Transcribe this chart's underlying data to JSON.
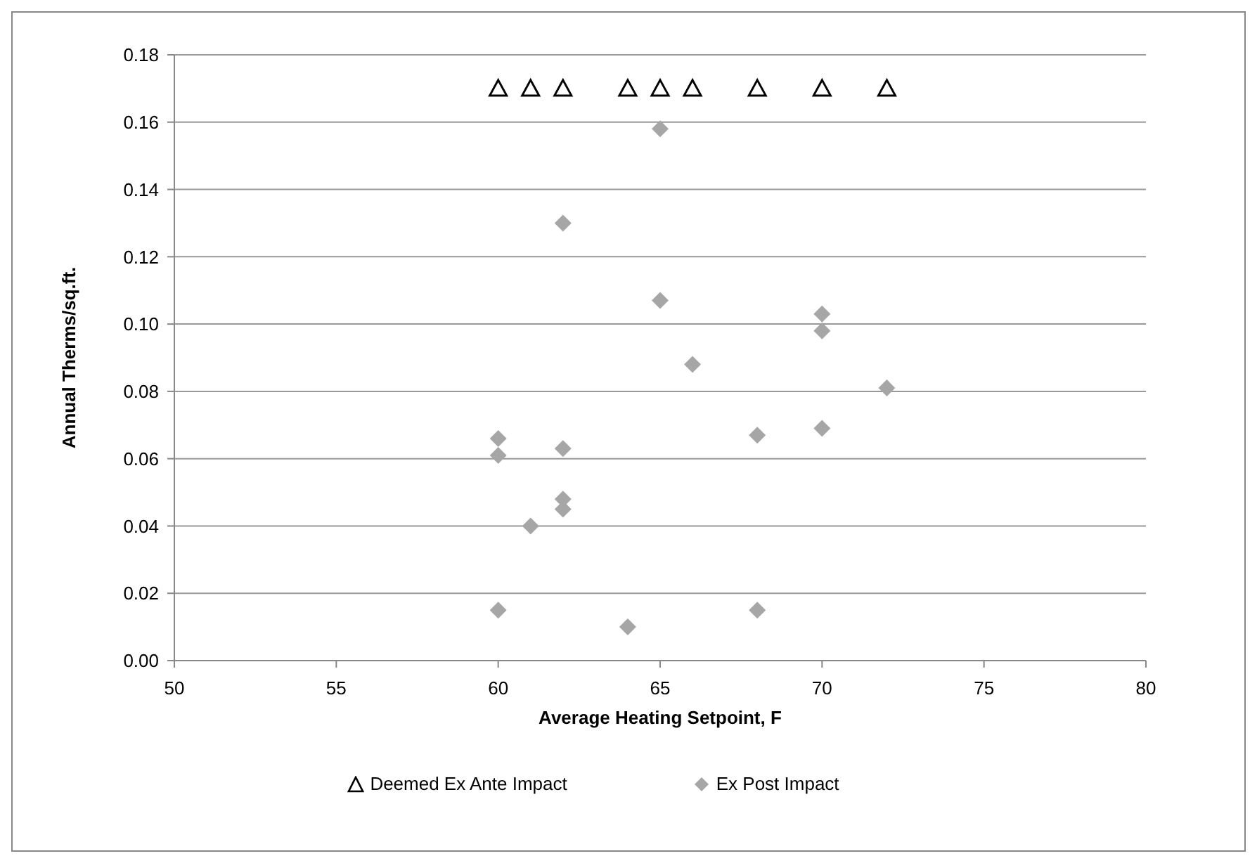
{
  "chart_data": {
    "type": "scatter",
    "xlabel": "Average Heating  Setpoint, F",
    "ylabel": "Annual Therms/sq.ft.",
    "xlim": [
      50,
      80
    ],
    "xticks": [
      50,
      55,
      60,
      65,
      70,
      75,
      80
    ],
    "ylim": [
      0,
      0.18
    ],
    "yticks": [
      {
        "value": 0,
        "label": "0.00"
      },
      {
        "value": 0.02,
        "label": "0.02"
      },
      {
        "value": 0.04,
        "label": "0.04"
      },
      {
        "value": 0.06,
        "label": "0.06"
      },
      {
        "value": 0.08,
        "label": "0.08"
      },
      {
        "value": 0.1,
        "label": "0.10"
      },
      {
        "value": 0.12,
        "label": "0.12"
      },
      {
        "value": 0.14,
        "label": "0.14"
      },
      {
        "value": 0.16,
        "label": "0.16"
      },
      {
        "value": 0.18,
        "label": "0.18"
      }
    ],
    "grid": "y",
    "legend": "bottom",
    "series": [
      {
        "name": "Deemed Ex Ante Impact",
        "color": "#000000",
        "marker": "triangle",
        "x": [
          60,
          61,
          62,
          64,
          65,
          66,
          68,
          70,
          72
        ],
        "values": [
          0.17,
          0.17,
          0.17,
          0.17,
          0.17,
          0.17,
          0.17,
          0.17,
          0.17
        ]
      },
      {
        "name": "Ex Post Impact",
        "color": "#a6a6a6",
        "marker": "diamond",
        "x": [
          65,
          62,
          65,
          70,
          70,
          66,
          72,
          60,
          60,
          62,
          68,
          70,
          62,
          62,
          61,
          60,
          64,
          68
        ],
        "values": [
          0.158,
          0.13,
          0.107,
          0.103,
          0.098,
          0.088,
          0.081,
          0.066,
          0.061,
          0.063,
          0.067,
          0.069,
          0.048,
          0.045,
          0.04,
          0.015,
          0.01,
          0.015
        ]
      }
    ]
  }
}
